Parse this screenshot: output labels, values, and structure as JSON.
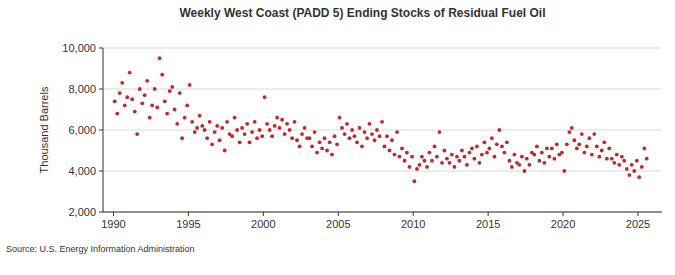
{
  "chart_data": {
    "type": "scatter",
    "title": "Weekly West Coast (PADD 5) Ending Stocks of Residual Fuel Oil",
    "y_label": "Thousand Barrels",
    "source": "Source: U.S. Energy Information Administration",
    "color": "#c0282d",
    "marker": "circle",
    "grid": true,
    "xlim": [
      1989.3,
      2026.6
    ],
    "ylim": [
      2000,
      10000
    ],
    "xticks": [
      1990,
      1995,
      2000,
      2005,
      2010,
      2015,
      2020,
      2025
    ],
    "yticks": [
      {
        "value": 2000,
        "label": "2,000"
      },
      {
        "value": 4000,
        "label": "4,000"
      },
      {
        "value": 6000,
        "label": "6,000"
      },
      {
        "value": 8000,
        "label": "8,000"
      },
      {
        "value": 10000,
        "label": "10,000"
      }
    ],
    "x": [
      1990.08,
      1990.25,
      1990.42,
      1990.58,
      1990.75,
      1990.92,
      1991.08,
      1991.25,
      1991.42,
      1991.58,
      1991.75,
      1991.92,
      1992.08,
      1992.25,
      1992.42,
      1992.58,
      1992.75,
      1992.92,
      1993.08,
      1993.25,
      1993.42,
      1993.58,
      1993.75,
      1993.92,
      1994.08,
      1994.25,
      1994.42,
      1994.58,
      1994.75,
      1994.92,
      1995.08,
      1995.25,
      1995.42,
      1995.58,
      1995.75,
      1995.92,
      1996.08,
      1996.25,
      1996.42,
      1996.58,
      1996.75,
      1996.92,
      1997.08,
      1997.25,
      1997.42,
      1997.58,
      1997.75,
      1997.92,
      1998.08,
      1998.25,
      1998.42,
      1998.58,
      1998.75,
      1998.92,
      1999.08,
      1999.25,
      1999.42,
      1999.58,
      1999.75,
      1999.92,
      2000.08,
      2000.25,
      2000.42,
      2000.58,
      2000.75,
      2000.92,
      2001.08,
      2001.25,
      2001.42,
      2001.58,
      2001.75,
      2001.92,
      2002.08,
      2002.25,
      2002.42,
      2002.58,
      2002.75,
      2002.92,
      2003.08,
      2003.25,
      2003.42,
      2003.58,
      2003.75,
      2003.92,
      2004.08,
      2004.25,
      2004.42,
      2004.58,
      2004.75,
      2004.92,
      2005.08,
      2005.25,
      2005.42,
      2005.58,
      2005.75,
      2005.92,
      2006.08,
      2006.25,
      2006.42,
      2006.58,
      2006.75,
      2006.92,
      2007.08,
      2007.25,
      2007.42,
      2007.58,
      2007.75,
      2007.92,
      2008.08,
      2008.25,
      2008.42,
      2008.58,
      2008.75,
      2008.92,
      2009.08,
      2009.25,
      2009.42,
      2009.58,
      2009.75,
      2009.92,
      2010.08,
      2010.25,
      2010.42,
      2010.58,
      2010.75,
      2010.92,
      2011.08,
      2011.25,
      2011.42,
      2011.58,
      2011.75,
      2011.92,
      2012.08,
      2012.25,
      2012.42,
      2012.58,
      2012.75,
      2012.92,
      2013.08,
      2013.25,
      2013.42,
      2013.58,
      2013.75,
      2013.92,
      2014.08,
      2014.25,
      2014.42,
      2014.58,
      2014.75,
      2014.92,
      2015.08,
      2015.25,
      2015.42,
      2015.58,
      2015.75,
      2015.92,
      2016.08,
      2016.25,
      2016.42,
      2016.58,
      2016.75,
      2016.92,
      2017.08,
      2017.25,
      2017.42,
      2017.58,
      2017.75,
      2017.92,
      2018.08,
      2018.25,
      2018.42,
      2018.58,
      2018.75,
      2018.92,
      2019.08,
      2019.25,
      2019.42,
      2019.58,
      2019.75,
      2019.92,
      2020.08,
      2020.25,
      2020.42,
      2020.58,
      2020.75,
      2020.92,
      2021.08,
      2021.25,
      2021.42,
      2021.58,
      2021.75,
      2021.92,
      2022.08,
      2022.25,
      2022.42,
      2022.58,
      2022.75,
      2022.92,
      2023.08,
      2023.25,
      2023.42,
      2023.58,
      2023.75,
      2023.92,
      2024.08,
      2024.25,
      2024.42,
      2024.58,
      2024.75,
      2024.92,
      2025.08,
      2025.25,
      2025.42,
      2025.58
    ],
    "values": [
      7400,
      6800,
      7800,
      8300,
      7200,
      7600,
      8800,
      7500,
      6900,
      5800,
      8000,
      7300,
      7700,
      8400,
      6600,
      7200,
      8000,
      7100,
      9500,
      8700,
      7400,
      6800,
      7900,
      8100,
      7000,
      6300,
      7800,
      5600,
      6600,
      7200,
      8200,
      6400,
      5900,
      6100,
      6700,
      6200,
      6000,
      5600,
      6400,
      5300,
      5900,
      6200,
      5500,
      6100,
      5000,
      6400,
      5800,
      5700,
      6600,
      6000,
      5400,
      6100,
      5800,
      6300,
      5400,
      5900,
      6400,
      5600,
      6000,
      5700,
      7600,
      6300,
      6000,
      5700,
      6200,
      6600,
      6100,
      6500,
      5800,
      6300,
      6000,
      5600,
      6400,
      5500,
      5200,
      5800,
      6100,
      5600,
      5600,
      5200,
      5900,
      4900,
      5400,
      5100,
      5600,
      5000,
      5400,
      4800,
      5700,
      5300,
      6600,
      6100,
      5800,
      6300,
      5600,
      6000,
      5700,
      5400,
      6100,
      5200,
      5900,
      5600,
      6300,
      5800,
      5500,
      6000,
      5700,
      6400,
      5200,
      5700,
      5000,
      5500,
      4800,
      5900,
      4700,
      5100,
      4500,
      4900,
      4200,
      4700,
      3500,
      4100,
      4300,
      4700,
      4500,
      4200,
      4900,
      4500,
      5200,
      4700,
      5900,
      4400,
      5000,
      4600,
      4400,
      4800,
      4200,
      4700,
      4500,
      5000,
      4700,
      4300,
      4900,
      5100,
      4600,
      5200,
      4400,
      4800,
      5400,
      4900,
      5100,
      5600,
      4700,
      5300,
      6000,
      5200,
      4900,
      5400,
      4500,
      4200,
      4800,
      4400,
      4300,
      4700,
      4000,
      4600,
      4300,
      4900,
      4800,
      5200,
      4500,
      4900,
      4400,
      5100,
      4700,
      5100,
      4600,
      5300,
      4800,
      4900,
      4000,
      5300,
      5900,
      6100,
      5500,
      5100,
      5300,
      5800,
      4900,
      5200,
      5600,
      4800,
      5800,
      5200,
      4700,
      5000,
      5400,
      4600,
      5100,
      4600,
      4400,
      4800,
      4300,
      4700,
      4500,
      4100,
      3800,
      4300,
      4000,
      4500,
      3700,
      4200,
      5100,
      4600
    ]
  }
}
